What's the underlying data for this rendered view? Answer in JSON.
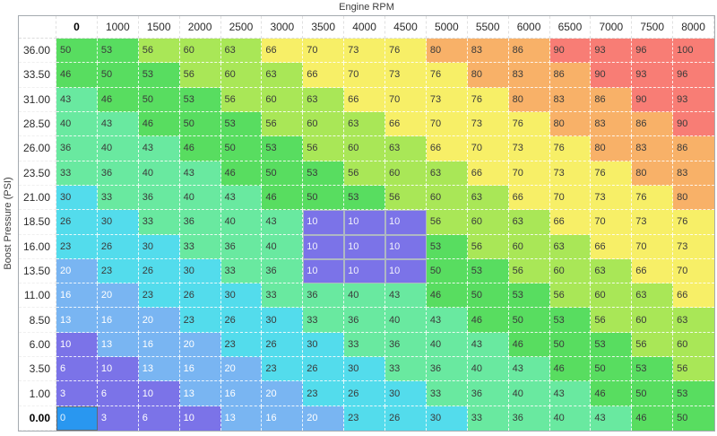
{
  "title": "Engine RPM",
  "y_axis_label": "Boost Pressure (PSI)",
  "chart_data": {
    "type": "heatmap",
    "title": "Engine RPM",
    "xlabel": "Engine RPM",
    "ylabel": "Boost Pressure (PSI)",
    "columns": [
      "0",
      "1000",
      "1500",
      "2000",
      "2500",
      "3000",
      "3500",
      "4000",
      "4500",
      "5000",
      "5500",
      "6000",
      "6500",
      "7000",
      "7500",
      "8000"
    ],
    "rows": [
      "36.00",
      "33.50",
      "31.00",
      "28.50",
      "26.00",
      "23.50",
      "21.00",
      "18.50",
      "16.00",
      "13.50",
      "11.00",
      "8.50",
      "6.00",
      "3.50",
      "1.00",
      "0.00"
    ],
    "values": [
      [
        50,
        53,
        56,
        60,
        63,
        66,
        70,
        73,
        76,
        80,
        83,
        86,
        90,
        93,
        96,
        100
      ],
      [
        46,
        50,
        53,
        56,
        60,
        63,
        66,
        70,
        73,
        76,
        80,
        83,
        86,
        90,
        93,
        96
      ],
      [
        43,
        46,
        50,
        53,
        56,
        60,
        63,
        66,
        70,
        73,
        76,
        80,
        83,
        86,
        90,
        93
      ],
      [
        40,
        43,
        46,
        50,
        53,
        56,
        60,
        63,
        66,
        70,
        73,
        76,
        80,
        83,
        86,
        90
      ],
      [
        36,
        40,
        43,
        46,
        50,
        53,
        56,
        60,
        63,
        66,
        70,
        73,
        76,
        80,
        83,
        86
      ],
      [
        33,
        36,
        40,
        43,
        46,
        50,
        53,
        56,
        60,
        63,
        66,
        70,
        73,
        76,
        80,
        83
      ],
      [
        30,
        33,
        36,
        40,
        43,
        46,
        50,
        53,
        56,
        60,
        63,
        66,
        70,
        73,
        76,
        80
      ],
      [
        26,
        30,
        33,
        36,
        40,
        43,
        10,
        10,
        10,
        56,
        60,
        63,
        66,
        70,
        73,
        76
      ],
      [
        23,
        26,
        30,
        33,
        36,
        40,
        10,
        10,
        10,
        53,
        56,
        60,
        63,
        66,
        70,
        73
      ],
      [
        20,
        23,
        26,
        30,
        33,
        36,
        10,
        10,
        10,
        50,
        53,
        56,
        60,
        63,
        66,
        70
      ],
      [
        16,
        20,
        23,
        26,
        30,
        33,
        36,
        40,
        43,
        46,
        50,
        53,
        56,
        60,
        63,
        66
      ],
      [
        13,
        16,
        20,
        23,
        26,
        30,
        33,
        36,
        40,
        43,
        46,
        50,
        53,
        56,
        60,
        63
      ],
      [
        10,
        13,
        16,
        20,
        23,
        26,
        30,
        33,
        36,
        40,
        43,
        46,
        50,
        53,
        56,
        60
      ],
      [
        6,
        10,
        13,
        16,
        20,
        23,
        26,
        30,
        33,
        36,
        40,
        43,
        46,
        50,
        53,
        56
      ],
      [
        3,
        6,
        10,
        13,
        16,
        20,
        23,
        26,
        30,
        33,
        36,
        40,
        43,
        46,
        50,
        53
      ],
      [
        0,
        3,
        6,
        10,
        13,
        16,
        20,
        23,
        26,
        30,
        33,
        36,
        40,
        43,
        46,
        50
      ]
    ],
    "edited_block": {
      "value": 10,
      "row_start": 7,
      "row_end": 9,
      "col_start": 6,
      "col_end": 8,
      "rows": [
        "18.50",
        "16.00",
        "13.50"
      ],
      "cols": [
        "3500",
        "4000",
        "4500"
      ],
      "fill": "#7b73e8",
      "text_color": "#f2f2fc",
      "border_color": "#aeb8c4"
    },
    "selected_cell": {
      "row_index": 15,
      "col_index": 0,
      "row": "0.00",
      "col": "0",
      "value": 0,
      "fill": "#2997f0",
      "text_color": "#eaf4fd",
      "border_color": "#5f6a75"
    },
    "color_bands": [
      {
        "min": 0,
        "max": 10,
        "color": "#7b73e8",
        "text": "#ffffff"
      },
      {
        "min": 13,
        "max": 20,
        "color": "#79b5f2",
        "text": "#ffffff"
      },
      {
        "min": 23,
        "max": 30,
        "color": "#53dcec",
        "text": "#3a3a3a"
      },
      {
        "min": 33,
        "max": 43,
        "color": "#69e9a0",
        "text": "#3a3a3a"
      },
      {
        "min": 46,
        "max": 53,
        "color": "#58dd60",
        "text": "#3a3a3a"
      },
      {
        "min": 56,
        "max": 63,
        "color": "#a9e757",
        "text": "#3a3a3a"
      },
      {
        "min": 66,
        "max": 76,
        "color": "#f7ef67",
        "text": "#3a3a3a"
      },
      {
        "min": 80,
        "max": 86,
        "color": "#f8b168",
        "text": "#3a3a3a"
      },
      {
        "min": 90,
        "max": 100,
        "color": "#f87d75",
        "text": "#3a3a3a"
      }
    ],
    "grid": "dashed-white",
    "legend": "none"
  }
}
